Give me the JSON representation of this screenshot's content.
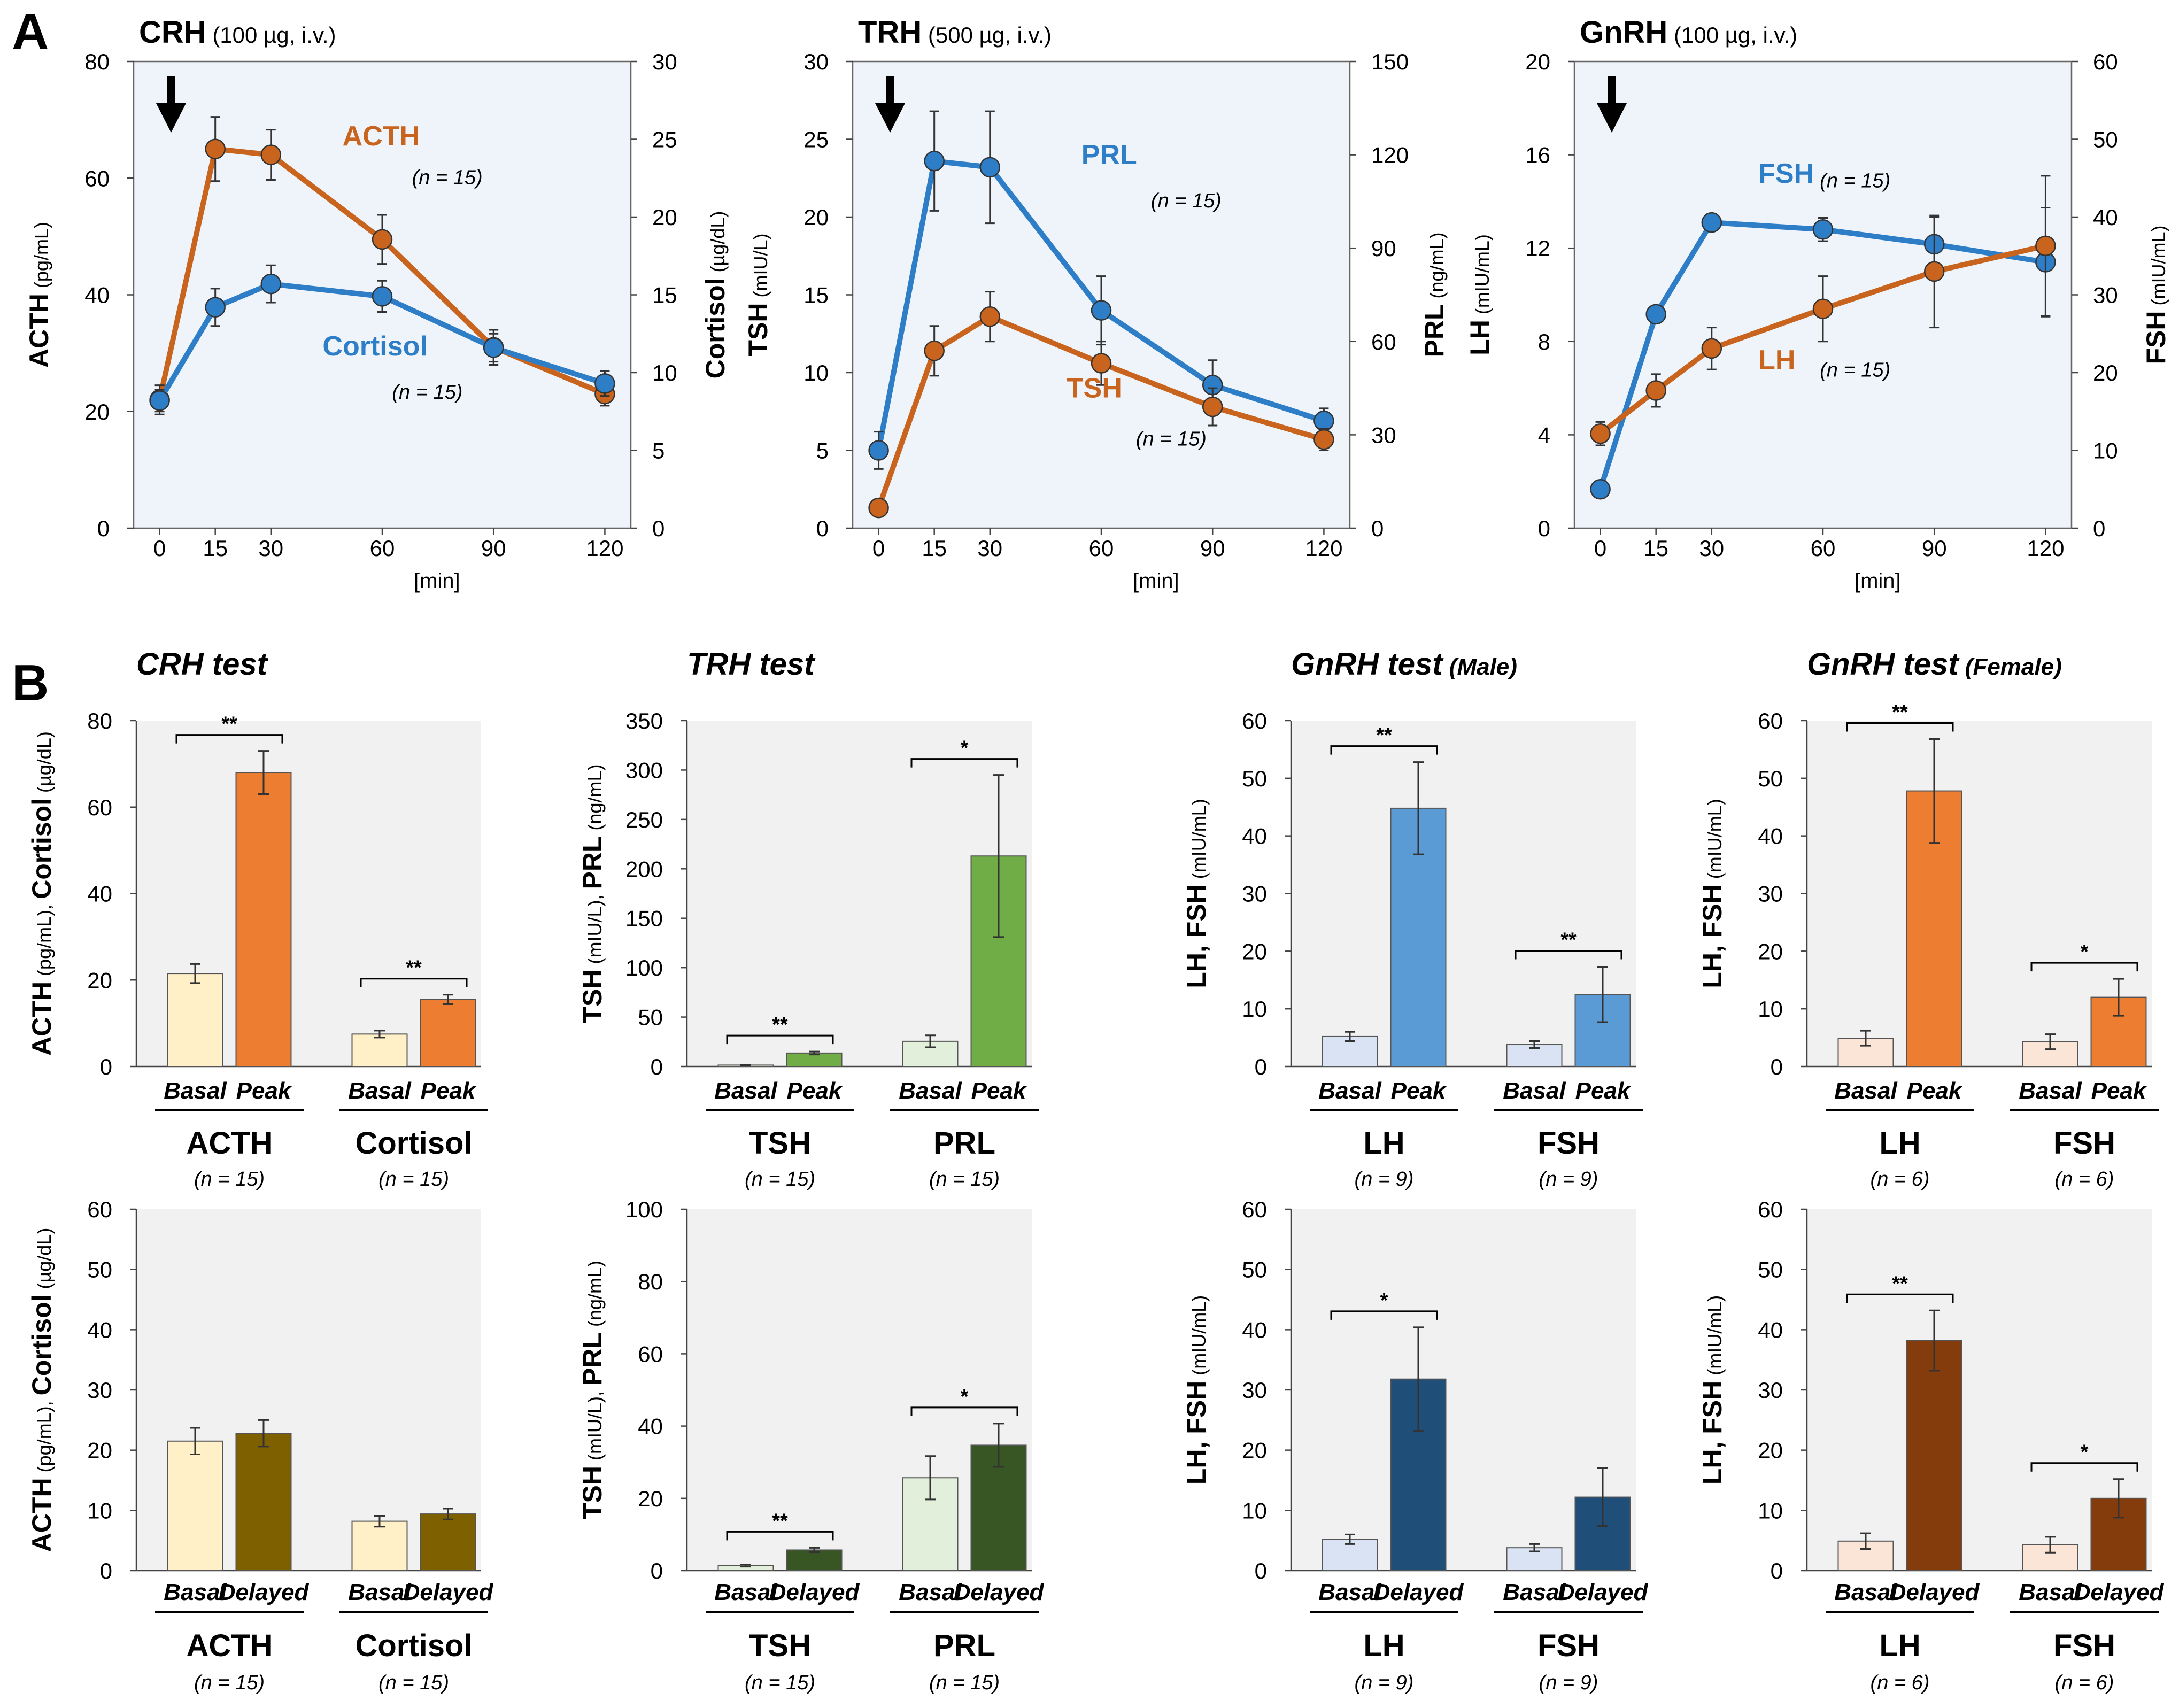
{
  "panel_labels": {
    "a": "A",
    "b": "B"
  },
  "colors": {
    "orange": "#C8641E",
    "blue": "#2E7DC7",
    "plot_bg_a": "#EEF4FA",
    "plot_bg_b": "#F1F1F1",
    "acth_basal": "#FFF0C8",
    "acth_peak": "#ED7D31",
    "acth_delayed": "#7F6000",
    "trh_basal": "#E2EFDA",
    "trh_peak": "#70AD47",
    "trh_delayed": "#375623",
    "male_basal": "#DAE3F3",
    "male_peak": "#5B9BD5",
    "male_delayed": "#1F4E79",
    "female_basal": "#FBE5D6",
    "female_peak": "#ED7D31",
    "female_delayed": "#843C0C"
  },
  "chart_data": [
    {
      "id": "A1",
      "type": "line",
      "title": "CRH",
      "subtitle": "(100 µg, i.v.)",
      "x": [
        0,
        15,
        30,
        60,
        90,
        120
      ],
      "xlim": [
        -7,
        127
      ],
      "xlabel": "[min]",
      "x_ticks": [
        "0",
        "15",
        "30",
        "60",
        "90",
        "120"
      ],
      "ylim": [
        0,
        80
      ],
      "y_ticks": [
        "0",
        "20",
        "40",
        "60",
        "80"
      ],
      "ylabel_bold": "ACTH",
      "ylabel_unit": " (pg/mL)",
      "y2lim": [
        0,
        30
      ],
      "y2_ticks": [
        "0",
        "5",
        "10",
        "15",
        "20",
        "25",
        "30"
      ],
      "y2label_bold": "Cortisol",
      "y2label_unit": " (µg/dL)",
      "series": [
        {
          "name": "ACTH",
          "n": "(n = 15)",
          "axis": "left",
          "color": "orange",
          "values": [
            22,
            65,
            64,
            49.5,
            31,
            23
          ],
          "errors": [
            2.5,
            5.5,
            4.3,
            4.2,
            3,
            2
          ]
        },
        {
          "name": "Cortisol",
          "n": "(n = 15)",
          "axis": "right",
          "color": "blue",
          "values": [
            8.2,
            14.2,
            15.7,
            14.9,
            11.6,
            9.3
          ],
          "errors": [
            0.7,
            1.2,
            1.2,
            1.0,
            0.9,
            0.8
          ]
        }
      ]
    },
    {
      "id": "A2",
      "type": "line",
      "title": "TRH",
      "subtitle": "(500 µg, i.v.)",
      "x": [
        0,
        15,
        30,
        60,
        90,
        120
      ],
      "xlim": [
        -7,
        127
      ],
      "xlabel": "[min]",
      "x_ticks": [
        "0",
        "15",
        "30",
        "60",
        "90",
        "120"
      ],
      "ylim": [
        0,
        30
      ],
      "y_ticks": [
        "0",
        "5",
        "10",
        "15",
        "20",
        "25",
        "30"
      ],
      "ylabel_bold": "TSH",
      "ylabel_unit": " (mIU/L)",
      "y2lim": [
        0,
        150
      ],
      "y2_ticks": [
        "0",
        "30",
        "60",
        "90",
        "120",
        "150"
      ],
      "y2label_bold": "PRL",
      "y2label_unit": " (ng/mL)",
      "series": [
        {
          "name": "PRL",
          "n": "(n = 15)",
          "axis": "right",
          "color": "blue",
          "values": [
            25,
            118,
            116,
            70,
            46,
            34.5
          ],
          "errors": [
            6,
            16,
            18,
            11,
            8,
            4
          ]
        },
        {
          "name": "TSH",
          "n": "(n = 15)",
          "axis": "left",
          "color": "orange",
          "values": [
            1.3,
            11.4,
            13.6,
            10.6,
            7.8,
            5.7
          ],
          "errors": [
            0.3,
            1.6,
            1.6,
            1.4,
            1.2,
            0.7
          ]
        }
      ]
    },
    {
      "id": "A3",
      "type": "line",
      "title": "GnRH",
      "subtitle": "(100 µg, i.v.)",
      "x": [
        0,
        15,
        30,
        60,
        90,
        120
      ],
      "xlim": [
        -7,
        127
      ],
      "xlabel": "[min]",
      "x_ticks": [
        "0",
        "15",
        "30",
        "60",
        "90",
        "120"
      ],
      "ylim": [
        0,
        20
      ],
      "y_ticks": [
        "0",
        "4",
        "8",
        "12",
        "16",
        "20"
      ],
      "ylabel_bold": "LH",
      "ylabel_unit": " (mIU/mL)",
      "y2lim": [
        0,
        60
      ],
      "y2_ticks": [
        "0",
        "10",
        "20",
        "30",
        "40",
        "50",
        "60"
      ],
      "y2label_bold": "FSH",
      "y2label_unit": " (mIU/mL)",
      "series": [
        {
          "name": "FSH",
          "n": "(n = 15)",
          "axis": "right",
          "color": "blue",
          "values": [
            5,
            27.5,
            39.3,
            38.4,
            36.5,
            34.2
          ],
          "errors": [
            0.5,
            0.5,
            0.5,
            1.5,
            3.5,
            7
          ]
        },
        {
          "name": "LH",
          "n": "(n = 15)",
          "axis": "left",
          "color": "orange",
          "values": [
            4.05,
            5.9,
            7.7,
            9.4,
            11,
            12.1
          ],
          "errors": [
            0.5,
            0.7,
            0.9,
            1.4,
            2.4,
            3
          ]
        }
      ]
    }
  ],
  "bar_charts": [
    {
      "id": "B1",
      "title": "CRH test",
      "title_suffix": "",
      "ylim": [
        0,
        80
      ],
      "y_ticks": [
        "0",
        "20",
        "40",
        "60",
        "80"
      ],
      "ylabel_parts": [
        [
          "ACTH",
          "b"
        ],
        [
          " (pg/mL), ",
          "s"
        ],
        [
          "Cortisol",
          "b"
        ],
        [
          " (µg/dL)",
          "s"
        ]
      ],
      "groups": [
        {
          "label": "ACTH",
          "n": "(n = 15)",
          "bars": [
            {
              "label": "Basal",
              "value": 21.5,
              "error": 2.2,
              "color": "acth_basal"
            },
            {
              "label": "Peak",
              "value": 68,
              "error": 5,
              "color": "acth_peak"
            }
          ],
          "sig": "**"
        },
        {
          "label": "Cortisol",
          "n": "(n = 15)",
          "bars": [
            {
              "label": "Basal",
              "value": 7.5,
              "error": 0.8,
              "color": "acth_basal"
            },
            {
              "label": "Peak",
              "value": 15.5,
              "error": 1.1,
              "color": "acth_peak"
            }
          ],
          "sig": "**"
        }
      ]
    },
    {
      "id": "B2",
      "title": "TRH test",
      "title_suffix": "",
      "ylim": [
        0,
        350
      ],
      "y_ticks": [
        "0",
        "50",
        "100",
        "150",
        "200",
        "250",
        "300",
        "350"
      ],
      "ylabel_parts": [
        [
          "TSH",
          "b"
        ],
        [
          " (mIU/L), ",
          "s"
        ],
        [
          "PRL",
          "b"
        ],
        [
          " (ng/mL)",
          "s"
        ]
      ],
      "groups": [
        {
          "label": "TSH",
          "n": "(n = 15)",
          "bars": [
            {
              "label": "Basal",
              "value": 1.4,
              "error": 0.3,
              "color": "trh_basal"
            },
            {
              "label": "Peak",
              "value": 13.6,
              "error": 1.5,
              "color": "trh_peak"
            }
          ],
          "sig": "**"
        },
        {
          "label": "PRL",
          "n": "(n = 15)",
          "bars": [
            {
              "label": "Basal",
              "value": 25.5,
              "error": 6,
              "color": "trh_basal"
            },
            {
              "label": "Peak",
              "value": 213,
              "error": 82,
              "color": "trh_peak"
            }
          ],
          "sig": "*"
        }
      ]
    },
    {
      "id": "B3",
      "title": "GnRH test",
      "title_suffix": "(Male)",
      "ylim": [
        0,
        60
      ],
      "y_ticks": [
        "0",
        "10",
        "20",
        "30",
        "40",
        "50",
        "60"
      ],
      "ylabel_parts": [
        [
          "LH, FSH",
          "b"
        ],
        [
          " (mIU/mL)",
          "s"
        ]
      ],
      "groups": [
        {
          "label": "LH",
          "n": "(n = 9)",
          "bars": [
            {
              "label": "Basal",
              "value": 5.2,
              "error": 0.8,
              "color": "male_basal"
            },
            {
              "label": "Peak",
              "value": 44.8,
              "error": 8,
              "color": "male_peak"
            }
          ],
          "sig": "**"
        },
        {
          "label": "FSH",
          "n": "(n = 9)",
          "bars": [
            {
              "label": "Basal",
              "value": 3.8,
              "error": 0.6,
              "color": "male_basal"
            },
            {
              "label": "Peak",
              "value": 12.5,
              "error": 4.8,
              "color": "male_peak"
            }
          ],
          "sig": "**"
        }
      ]
    },
    {
      "id": "B4",
      "title": "GnRH test",
      "title_suffix": "(Female)",
      "ylim": [
        0,
        60
      ],
      "y_ticks": [
        "0",
        "10",
        "20",
        "30",
        "40",
        "50",
        "60"
      ],
      "ylabel_parts": [
        [
          "LH, FSH",
          "b"
        ],
        [
          " (mIU/mL)",
          "s"
        ]
      ],
      "groups": [
        {
          "label": "LH",
          "n": "(n = 6)",
          "bars": [
            {
              "label": "Basal",
              "value": 4.9,
              "error": 1.3,
              "color": "female_basal"
            },
            {
              "label": "Peak",
              "value": 47.8,
              "error": 9,
              "color": "female_peak"
            }
          ],
          "sig": "**"
        },
        {
          "label": "FSH",
          "n": "(n = 6)",
          "bars": [
            {
              "label": "Basal",
              "value": 4.3,
              "error": 1.3,
              "color": "female_basal"
            },
            {
              "label": "Peak",
              "value": 12,
              "error": 3.2,
              "color": "female_peak"
            }
          ],
          "sig": "*"
        }
      ]
    },
    {
      "id": "B5",
      "title": "",
      "title_suffix": "",
      "ylim": [
        0,
        60
      ],
      "y_ticks": [
        "0",
        "10",
        "20",
        "30",
        "40",
        "50",
        "60"
      ],
      "ylabel_parts": [
        [
          "ACTH",
          "b"
        ],
        [
          " (pg/mL), ",
          "s"
        ],
        [
          "Cortisol",
          "b"
        ],
        [
          " (µg/dL)",
          "s"
        ]
      ],
      "groups": [
        {
          "label": "ACTH",
          "n": "(n = 15)",
          "bars": [
            {
              "label": "Basal",
              "value": 21.5,
              "error": 2.2,
              "color": "acth_basal"
            },
            {
              "label": "Delayed",
              "value": 22.8,
              "error": 2.2,
              "color": "acth_delayed"
            }
          ],
          "sig": ""
        },
        {
          "label": "Cortisol",
          "n": "(n = 15)",
          "bars": [
            {
              "label": "Basal",
              "value": 8.2,
              "error": 0.9,
              "color": "acth_basal"
            },
            {
              "label": "Delayed",
              "value": 9.4,
              "error": 0.9,
              "color": "acth_delayed"
            }
          ],
          "sig": ""
        }
      ]
    },
    {
      "id": "B6",
      "title": "",
      "title_suffix": "",
      "ylim": [
        0,
        100
      ],
      "y_ticks": [
        "0",
        "20",
        "40",
        "60",
        "80",
        "100"
      ],
      "ylabel_parts": [
        [
          "TSH",
          "b"
        ],
        [
          " (mIU/L), ",
          "s"
        ],
        [
          "PRL",
          "b"
        ],
        [
          " (ng/mL)",
          "s"
        ]
      ],
      "groups": [
        {
          "label": "TSH",
          "n": "(n = 15)",
          "bars": [
            {
              "label": "Basal",
              "value": 1.4,
              "error": 0.3,
              "color": "trh_basal"
            },
            {
              "label": "Delayed",
              "value": 5.7,
              "error": 0.6,
              "color": "trh_delayed"
            }
          ],
          "sig": "**"
        },
        {
          "label": "PRL",
          "n": "(n = 15)",
          "bars": [
            {
              "label": "Basal",
              "value": 25.7,
              "error": 6,
              "color": "trh_basal"
            },
            {
              "label": "Delayed",
              "value": 34.7,
              "error": 6,
              "color": "trh_delayed"
            }
          ],
          "sig": "*"
        }
      ]
    },
    {
      "id": "B7",
      "title": "",
      "title_suffix": "",
      "ylim": [
        0,
        60
      ],
      "y_ticks": [
        "0",
        "10",
        "20",
        "30",
        "40",
        "50",
        "60"
      ],
      "ylabel_parts": [
        [
          "LH, FSH",
          "b"
        ],
        [
          " (mIU/mL)",
          "s"
        ]
      ],
      "groups": [
        {
          "label": "LH",
          "n": "(n = 9)",
          "bars": [
            {
              "label": "Basal",
              "value": 5.2,
              "error": 0.8,
              "color": "male_basal"
            },
            {
              "label": "Delayed",
              "value": 31.8,
              "error": 8.6,
              "color": "male_delayed"
            }
          ],
          "sig": "*"
        },
        {
          "label": "FSH",
          "n": "(n = 9)",
          "bars": [
            {
              "label": "Basal",
              "value": 3.8,
              "error": 0.6,
              "color": "male_basal"
            },
            {
              "label": "Delayed",
              "value": 12.2,
              "error": 4.8,
              "color": "male_delayed"
            }
          ],
          "sig": ""
        }
      ]
    },
    {
      "id": "B8",
      "title": "",
      "title_suffix": "",
      "ylim": [
        0,
        60
      ],
      "y_ticks": [
        "0",
        "10",
        "20",
        "30",
        "40",
        "50",
        "60"
      ],
      "ylabel_parts": [
        [
          "LH, FSH",
          "b"
        ],
        [
          " (mIU/mL)",
          "s"
        ]
      ],
      "groups": [
        {
          "label": "LH",
          "n": "(n = 6)",
          "bars": [
            {
              "label": "Basal",
              "value": 4.9,
              "error": 1.3,
              "color": "female_basal"
            },
            {
              "label": "Delayed",
              "value": 38.2,
              "error": 5,
              "color": "female_delayed"
            }
          ],
          "sig": "**"
        },
        {
          "label": "FSH",
          "n": "(n = 6)",
          "bars": [
            {
              "label": "Basal",
              "value": 4.3,
              "error": 1.3,
              "color": "female_basal"
            },
            {
              "label": "Delayed",
              "value": 12,
              "error": 3.2,
              "color": "female_delayed"
            }
          ],
          "sig": "*"
        }
      ]
    }
  ]
}
